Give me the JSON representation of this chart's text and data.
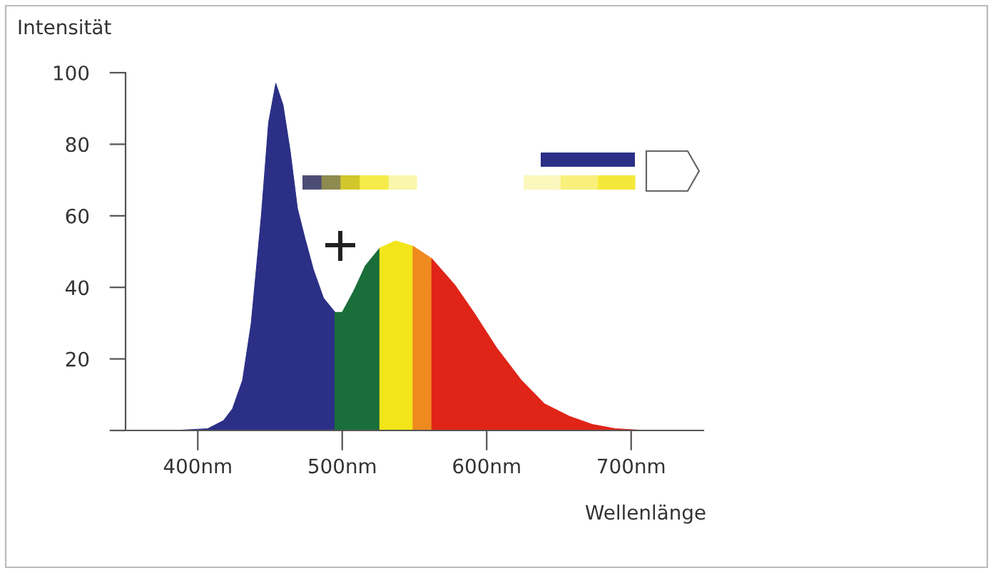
{
  "chart_data": {
    "type": "area",
    "xlabel": "Wellenlänge",
    "ylabel": "Intensität",
    "xlim": [
      350,
      750
    ],
    "ylim": [
      0,
      100
    ],
    "xticks": [
      {
        "value": 400,
        "label": "400nm"
      },
      {
        "value": 500,
        "label": "500nm"
      },
      {
        "value": 600,
        "label": "600nm"
      },
      {
        "value": 700,
        "label": "700nm"
      }
    ],
    "yticks": [
      {
        "value": 0,
        "label": null
      },
      20,
      40,
      60,
      80,
      100
    ],
    "grid": false,
    "legend": false,
    "series": [
      {
        "color": "#2b2f86",
        "x": [
          384,
          407,
          418,
          424,
          431,
          437,
          444,
          449,
          454,
          459,
          464,
          469,
          474,
          480,
          487,
          495
        ],
        "values": [
          0,
          0.5,
          2.8,
          6,
          14,
          30,
          60,
          86,
          97,
          91,
          78,
          62,
          54,
          45,
          37,
          33
        ]
      },
      {
        "color": "#1a6e3a",
        "x": [
          495,
          500,
          508,
          516,
          526
        ],
        "values": [
          33,
          33,
          39,
          46,
          51
        ]
      },
      {
        "color": "#f2e51a",
        "x": [
          526,
          537,
          549
        ],
        "values": [
          51,
          53,
          51.5
        ]
      },
      {
        "color": "#ef8a1e",
        "x": [
          549,
          562
        ],
        "values": [
          51.5,
          48
        ]
      },
      {
        "color": "#e02418",
        "x": [
          562,
          578,
          591,
          607,
          624,
          640,
          657,
          673,
          689,
          706,
          729
        ],
        "values": [
          48,
          40.6,
          33,
          23,
          14,
          7.4,
          4,
          1.7,
          0.5,
          0.1,
          0
        ]
      }
    ]
  }
}
